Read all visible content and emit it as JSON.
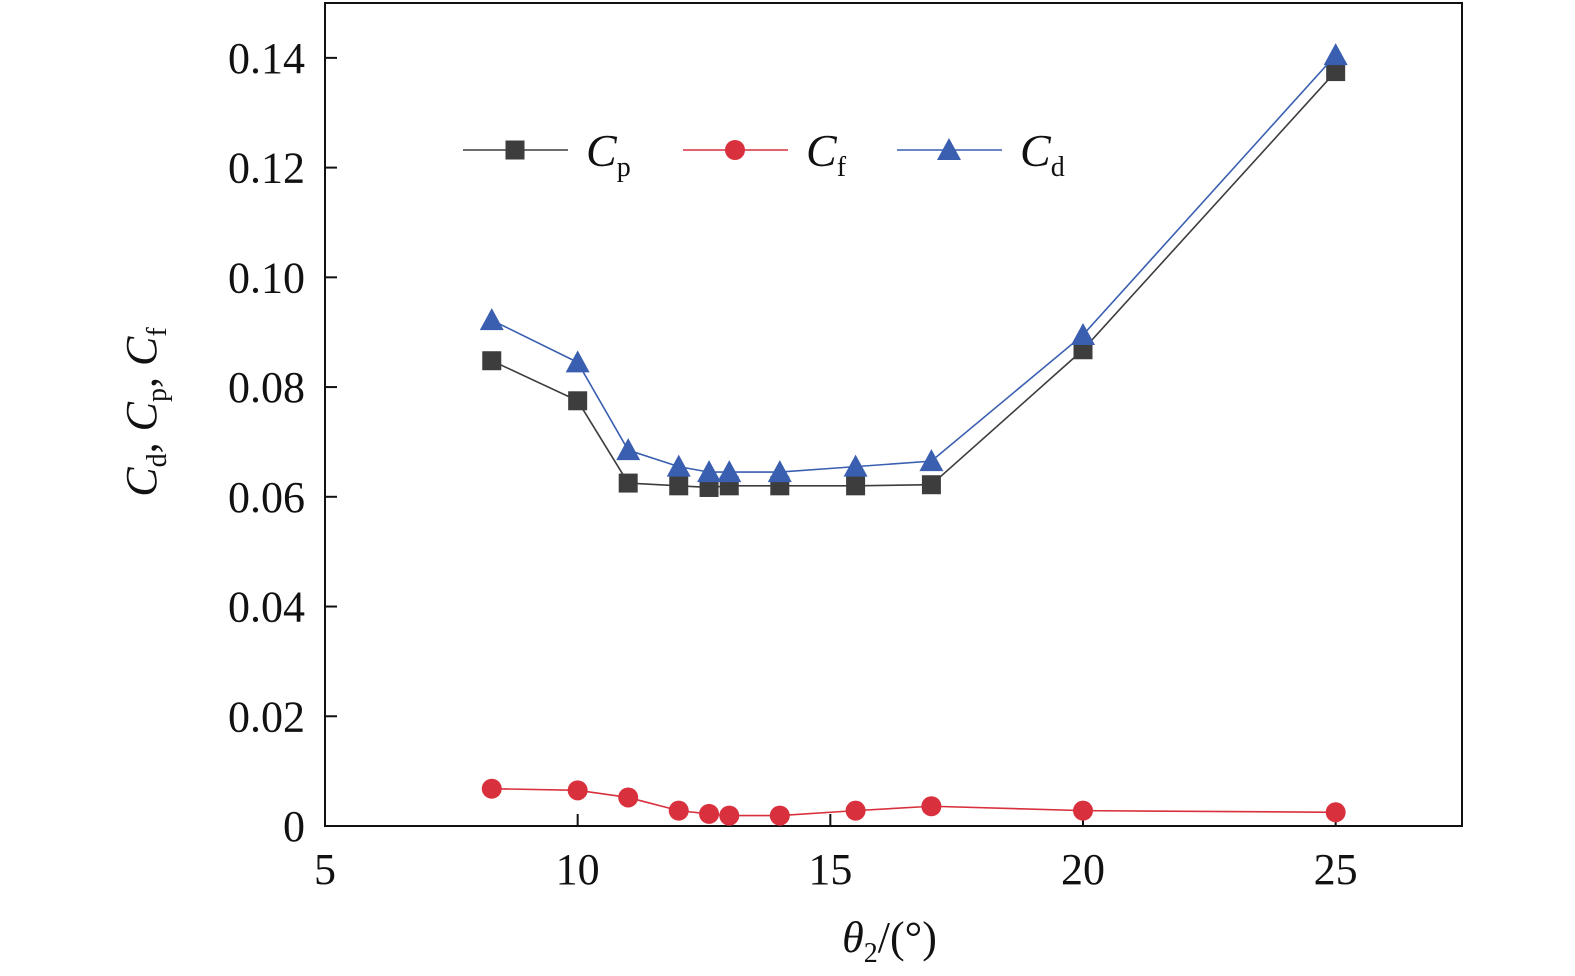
{
  "chart_data": {
    "type": "line",
    "title": "",
    "xlabel": {
      "symbol": "θ",
      "subscript": "2",
      "suffix": "/(°)"
    },
    "ylabel": [
      {
        "symbol": "C",
        "subscript": "d",
        "sep": ", "
      },
      {
        "symbol": "C",
        "subscript": "p",
        "sep": ", "
      },
      {
        "symbol": "C",
        "subscript": "f",
        "sep": ""
      }
    ],
    "xlim": [
      5,
      27.5
    ],
    "ylim": [
      0,
      0.15
    ],
    "xticks": [
      5,
      10,
      15,
      20,
      25
    ],
    "xtick_labels": [
      "5",
      "10",
      "15",
      "20",
      "25"
    ],
    "yticks": [
      0,
      0.02,
      0.04,
      0.06,
      0.08,
      0.1,
      0.12,
      0.14
    ],
    "ytick_labels": [
      "0",
      "0.02",
      "0.04",
      "0.06",
      "0.08",
      "0.10",
      "0.12",
      "0.14"
    ],
    "grid": false,
    "legend_position": "top-left",
    "series": [
      {
        "name": "C",
        "name_sub": "p",
        "color": "#3d3d3d",
        "marker": "square",
        "x": [
          8.3,
          10.0,
          11.0,
          12.0,
          12.6,
          13.0,
          14.0,
          15.5,
          17.0,
          20.0,
          25.0
        ],
        "y": [
          0.0848,
          0.0775,
          0.0625,
          0.062,
          0.0617,
          0.062,
          0.062,
          0.062,
          0.0622,
          0.0868,
          0.1375
        ]
      },
      {
        "name": "C",
        "name_sub": "f",
        "color": "#d9303e",
        "marker": "circle",
        "x": [
          8.3,
          10.0,
          11.0,
          12.0,
          12.6,
          13.0,
          14.0,
          15.5,
          17.0,
          20.0,
          25.0
        ],
        "y": [
          0.0068,
          0.0065,
          0.0052,
          0.0028,
          0.0022,
          0.0019,
          0.0019,
          0.0028,
          0.0036,
          0.0028,
          0.0025
        ]
      },
      {
        "name": "C",
        "name_sub": "d",
        "color": "#3a5fb0",
        "marker": "triangle",
        "x": [
          8.3,
          10.0,
          11.0,
          12.0,
          12.6,
          13.0,
          14.0,
          15.5,
          17.0,
          20.0,
          25.0
        ],
        "y": [
          0.0922,
          0.0845,
          0.0685,
          0.0655,
          0.0645,
          0.0645,
          0.0645,
          0.0655,
          0.0665,
          0.0895,
          0.1405
        ]
      }
    ]
  }
}
